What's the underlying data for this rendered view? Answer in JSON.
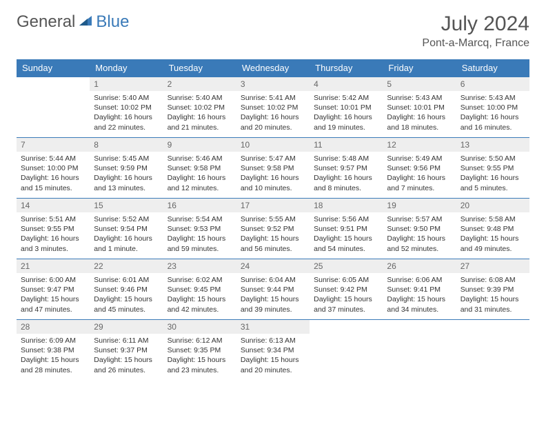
{
  "logo": {
    "text1": "General",
    "text2": "Blue"
  },
  "title": "July 2024",
  "location": "Pont-a-Marcq, France",
  "colors": {
    "header_bg": "#3a7ab8",
    "header_text": "#ffffff",
    "daynum_bg": "#eeeeee",
    "border": "#3a7ab8",
    "text": "#333333"
  },
  "weekdays": [
    "Sunday",
    "Monday",
    "Tuesday",
    "Wednesday",
    "Thursday",
    "Friday",
    "Saturday"
  ],
  "weeks": [
    [
      null,
      {
        "n": "1",
        "sr": "5:40 AM",
        "ss": "10:02 PM",
        "dl": "16 hours and 22 minutes."
      },
      {
        "n": "2",
        "sr": "5:40 AM",
        "ss": "10:02 PM",
        "dl": "16 hours and 21 minutes."
      },
      {
        "n": "3",
        "sr": "5:41 AM",
        "ss": "10:02 PM",
        "dl": "16 hours and 20 minutes."
      },
      {
        "n": "4",
        "sr": "5:42 AM",
        "ss": "10:01 PM",
        "dl": "16 hours and 19 minutes."
      },
      {
        "n": "5",
        "sr": "5:43 AM",
        "ss": "10:01 PM",
        "dl": "16 hours and 18 minutes."
      },
      {
        "n": "6",
        "sr": "5:43 AM",
        "ss": "10:00 PM",
        "dl": "16 hours and 16 minutes."
      }
    ],
    [
      {
        "n": "7",
        "sr": "5:44 AM",
        "ss": "10:00 PM",
        "dl": "16 hours and 15 minutes."
      },
      {
        "n": "8",
        "sr": "5:45 AM",
        "ss": "9:59 PM",
        "dl": "16 hours and 13 minutes."
      },
      {
        "n": "9",
        "sr": "5:46 AM",
        "ss": "9:58 PM",
        "dl": "16 hours and 12 minutes."
      },
      {
        "n": "10",
        "sr": "5:47 AM",
        "ss": "9:58 PM",
        "dl": "16 hours and 10 minutes."
      },
      {
        "n": "11",
        "sr": "5:48 AM",
        "ss": "9:57 PM",
        "dl": "16 hours and 8 minutes."
      },
      {
        "n": "12",
        "sr": "5:49 AM",
        "ss": "9:56 PM",
        "dl": "16 hours and 7 minutes."
      },
      {
        "n": "13",
        "sr": "5:50 AM",
        "ss": "9:55 PM",
        "dl": "16 hours and 5 minutes."
      }
    ],
    [
      {
        "n": "14",
        "sr": "5:51 AM",
        "ss": "9:55 PM",
        "dl": "16 hours and 3 minutes."
      },
      {
        "n": "15",
        "sr": "5:52 AM",
        "ss": "9:54 PM",
        "dl": "16 hours and 1 minute."
      },
      {
        "n": "16",
        "sr": "5:54 AM",
        "ss": "9:53 PM",
        "dl": "15 hours and 59 minutes."
      },
      {
        "n": "17",
        "sr": "5:55 AM",
        "ss": "9:52 PM",
        "dl": "15 hours and 56 minutes."
      },
      {
        "n": "18",
        "sr": "5:56 AM",
        "ss": "9:51 PM",
        "dl": "15 hours and 54 minutes."
      },
      {
        "n": "19",
        "sr": "5:57 AM",
        "ss": "9:50 PM",
        "dl": "15 hours and 52 minutes."
      },
      {
        "n": "20",
        "sr": "5:58 AM",
        "ss": "9:48 PM",
        "dl": "15 hours and 49 minutes."
      }
    ],
    [
      {
        "n": "21",
        "sr": "6:00 AM",
        "ss": "9:47 PM",
        "dl": "15 hours and 47 minutes."
      },
      {
        "n": "22",
        "sr": "6:01 AM",
        "ss": "9:46 PM",
        "dl": "15 hours and 45 minutes."
      },
      {
        "n": "23",
        "sr": "6:02 AM",
        "ss": "9:45 PM",
        "dl": "15 hours and 42 minutes."
      },
      {
        "n": "24",
        "sr": "6:04 AM",
        "ss": "9:44 PM",
        "dl": "15 hours and 39 minutes."
      },
      {
        "n": "25",
        "sr": "6:05 AM",
        "ss": "9:42 PM",
        "dl": "15 hours and 37 minutes."
      },
      {
        "n": "26",
        "sr": "6:06 AM",
        "ss": "9:41 PM",
        "dl": "15 hours and 34 minutes."
      },
      {
        "n": "27",
        "sr": "6:08 AM",
        "ss": "9:39 PM",
        "dl": "15 hours and 31 minutes."
      }
    ],
    [
      {
        "n": "28",
        "sr": "6:09 AM",
        "ss": "9:38 PM",
        "dl": "15 hours and 28 minutes."
      },
      {
        "n": "29",
        "sr": "6:11 AM",
        "ss": "9:37 PM",
        "dl": "15 hours and 26 minutes."
      },
      {
        "n": "30",
        "sr": "6:12 AM",
        "ss": "9:35 PM",
        "dl": "15 hours and 23 minutes."
      },
      {
        "n": "31",
        "sr": "6:13 AM",
        "ss": "9:34 PM",
        "dl": "15 hours and 20 minutes."
      },
      null,
      null,
      null
    ]
  ],
  "labels": {
    "sunrise": "Sunrise:",
    "sunset": "Sunset:",
    "daylight": "Daylight:"
  }
}
